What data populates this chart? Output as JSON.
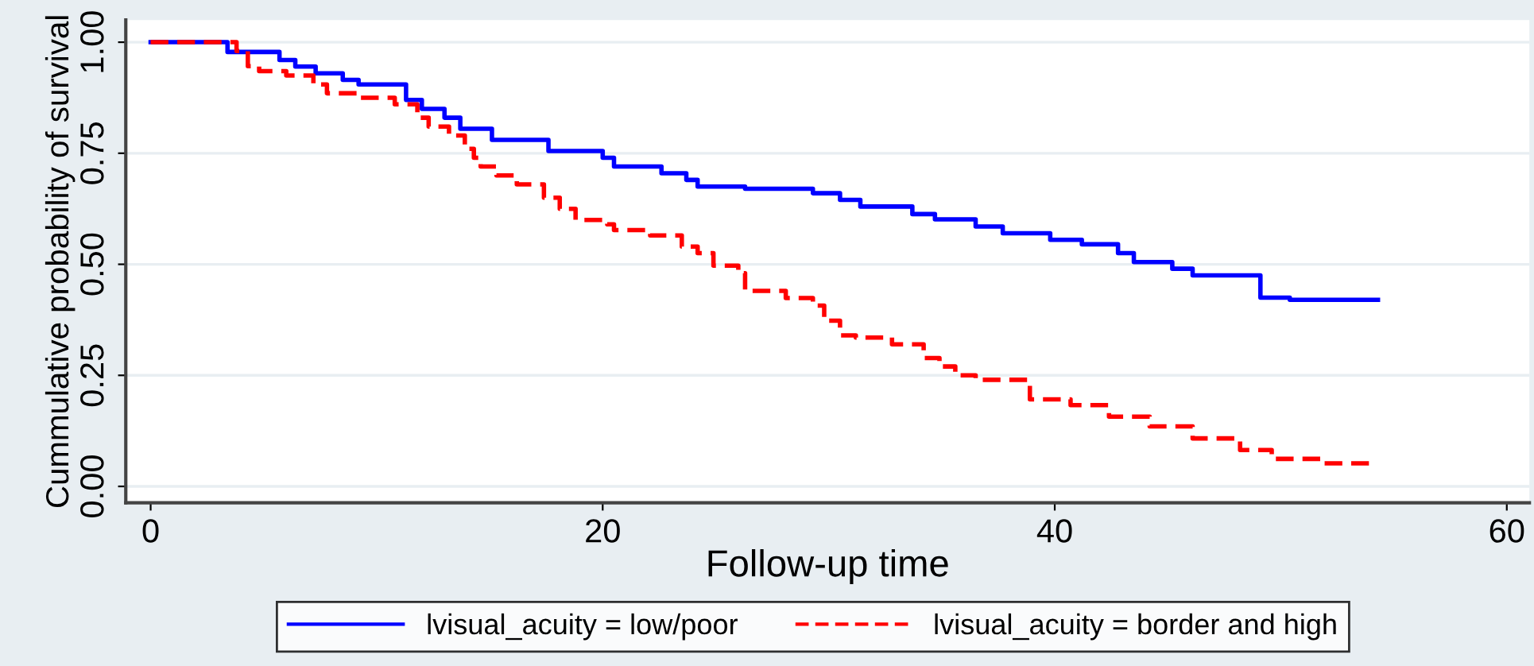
{
  "chart_data": {
    "type": "step",
    "xlabel": "Follow-up time",
    "ylabel": "Cummulative probability of survival",
    "xlim": [
      -1.1,
      61
    ],
    "ylim": [
      -0.037,
      1.05
    ],
    "xticks": [
      0,
      20,
      40,
      60
    ],
    "yticks": [
      {
        "value": 0,
        "label": "0.00"
      },
      {
        "value": 0.25,
        "label": "0.25"
      },
      {
        "value": 0.5,
        "label": "0.50"
      },
      {
        "value": 0.75,
        "label": "0.75"
      },
      {
        "value": 1,
        "label": "1.00"
      }
    ],
    "grid": "y",
    "legend": "bottom",
    "series": [
      {
        "name": "lvisual_acuity = low/poor",
        "color": "#0000ff",
        "line_style": "solid",
        "x": [
          0,
          3.4,
          5.7,
          6.4,
          7.3,
          8.5,
          9.2,
          11.3,
          12.0,
          13.0,
          13.7,
          15.1,
          17.6,
          20.0,
          20.5,
          22.6,
          23.7,
          24.2,
          26.3,
          29.3,
          30.5,
          31.4,
          33.7,
          34.7,
          36.5,
          37.7,
          39.8,
          41.2,
          42.8,
          43.5,
          45.2,
          46.1,
          49.1,
          50.4,
          54.3
        ],
        "values": [
          1.0,
          0.978,
          0.96,
          0.945,
          0.93,
          0.915,
          0.905,
          0.87,
          0.85,
          0.83,
          0.805,
          0.78,
          0.755,
          0.74,
          0.72,
          0.705,
          0.69,
          0.675,
          0.67,
          0.66,
          0.645,
          0.63,
          0.613,
          0.601,
          0.585,
          0.57,
          0.555,
          0.545,
          0.525,
          0.505,
          0.49,
          0.475,
          0.425,
          0.42,
          0.42
        ]
      },
      {
        "name": "lvisual_acuity = border and high",
        "color": "#ff0000",
        "line_style": "dashed",
        "x": [
          0,
          3.8,
          4.3,
          4.8,
          6.0,
          7.2,
          7.8,
          9.2,
          10.8,
          11.8,
          12.3,
          13.2,
          13.9,
          14.3,
          14.6,
          15.3,
          16.2,
          17.4,
          18.1,
          18.8,
          20.2,
          20.5,
          22.1,
          23.5,
          24.2,
          24.9,
          26.0,
          26.3,
          28.1,
          29.3,
          29.8,
          30.5,
          31.2,
          32.8,
          34.2,
          34.9,
          35.6,
          36.5,
          37.4,
          38.9,
          40.7,
          42.4,
          44.2,
          46.1,
          48.2,
          49.6,
          51.9,
          53.9
        ],
        "values": [
          1.0,
          0.98,
          0.946,
          0.935,
          0.925,
          0.905,
          0.885,
          0.875,
          0.86,
          0.83,
          0.81,
          0.79,
          0.76,
          0.74,
          0.72,
          0.7,
          0.68,
          0.65,
          0.625,
          0.6,
          0.59,
          0.577,
          0.565,
          0.54,
          0.525,
          0.497,
          0.48,
          0.44,
          0.424,
          0.407,
          0.373,
          0.34,
          0.335,
          0.32,
          0.289,
          0.27,
          0.25,
          0.24,
          0.24,
          0.196,
          0.183,
          0.157,
          0.135,
          0.108,
          0.082,
          0.062,
          0.052,
          0.052
        ]
      }
    ]
  }
}
